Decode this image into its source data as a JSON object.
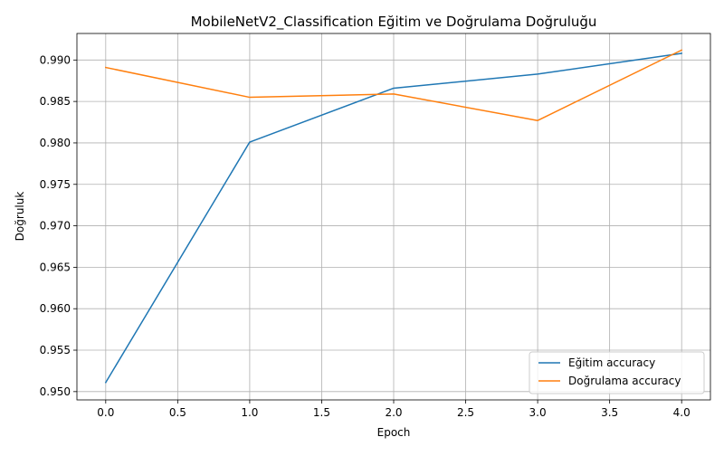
{
  "chart_data": {
    "type": "line",
    "title": "MobileNetV2_Classification Eğitim ve Doğrulama Doğruluğu",
    "xlabel": "Epoch",
    "ylabel": "Doğruluk",
    "x": [
      0,
      1,
      2,
      3,
      4
    ],
    "xlim": [
      -0.2,
      4.2
    ],
    "ylim": [
      0.949,
      0.9932
    ],
    "xticks": [
      0.0,
      0.5,
      1.0,
      1.5,
      2.0,
      2.5,
      3.0,
      3.5,
      4.0
    ],
    "xtick_labels": [
      "0.0",
      "0.5",
      "1.0",
      "1.5",
      "2.0",
      "2.5",
      "3.0",
      "3.5",
      "4.0"
    ],
    "yticks": [
      0.95,
      0.955,
      0.96,
      0.965,
      0.97,
      0.975,
      0.98,
      0.985,
      0.99
    ],
    "ytick_labels": [
      "0.950",
      "0.955",
      "0.960",
      "0.965",
      "0.970",
      "0.975",
      "0.980",
      "0.985",
      "0.990"
    ],
    "grid": true,
    "legend_position": "lower-right",
    "series": [
      {
        "name": "Eğitim accuracy",
        "color": "#1f77b4",
        "values": [
          0.9511,
          0.9801,
          0.9866,
          0.9883,
          0.9908
        ]
      },
      {
        "name": "Doğrulama accuracy",
        "color": "#ff7f0e",
        "values": [
          0.9891,
          0.9855,
          0.9859,
          0.9827,
          0.9912
        ]
      }
    ]
  }
}
